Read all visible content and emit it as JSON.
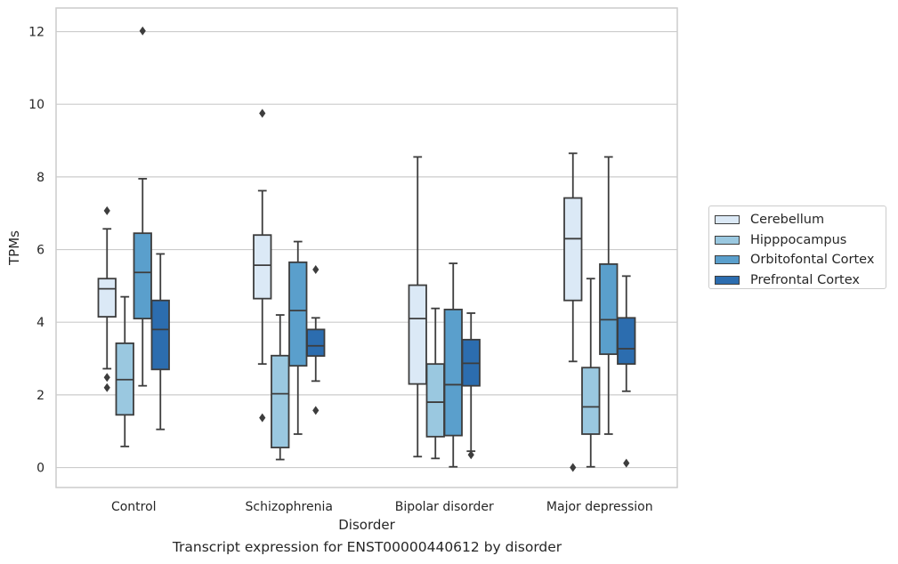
{
  "chart_data": {
    "type": "box",
    "caption": "Transcript expression for ENST00000440612 by disorder",
    "xlabel": "Disorder",
    "ylabel": "TPMs",
    "ylim": [
      -0.55,
      12.65
    ],
    "yticks": [
      0,
      2,
      4,
      6,
      8,
      10,
      12
    ],
    "grid": "horizontal",
    "legend_position": "right",
    "categories": [
      "Control",
      "Schizophrenia",
      "Bipolar disorder",
      "Major depression"
    ],
    "series": [
      {
        "name": "Cerebellum",
        "color": "#dbe9f6",
        "boxes": [
          {
            "whisker_low": 2.72,
            "q1": 4.15,
            "median": 4.92,
            "q3": 5.2,
            "whisker_high": 6.57,
            "outliers": [
              2.48,
              2.2,
              7.07
            ]
          },
          {
            "whisker_low": 2.85,
            "q1": 4.65,
            "median": 5.57,
            "q3": 6.4,
            "whisker_high": 7.62,
            "outliers": [
              1.37,
              9.75
            ]
          },
          {
            "whisker_low": 0.3,
            "q1": 2.3,
            "median": 4.1,
            "q3": 5.02,
            "whisker_high": 8.55,
            "outliers": []
          },
          {
            "whisker_low": 2.92,
            "q1": 4.6,
            "median": 6.3,
            "q3": 7.42,
            "whisker_high": 8.65,
            "outliers": [
              0.0
            ]
          }
        ]
      },
      {
        "name": "Hipppocampus",
        "color": "#9ac8e0",
        "boxes": [
          {
            "whisker_low": 0.58,
            "q1": 1.45,
            "median": 2.42,
            "q3": 3.42,
            "whisker_high": 4.7,
            "outliers": []
          },
          {
            "whisker_low": 0.22,
            "q1": 0.55,
            "median": 2.03,
            "q3": 3.08,
            "whisker_high": 4.2,
            "outliers": []
          },
          {
            "whisker_low": 0.25,
            "q1": 0.85,
            "median": 1.8,
            "q3": 2.85,
            "whisker_high": 4.38,
            "outliers": []
          },
          {
            "whisker_low": 0.02,
            "q1": 0.92,
            "median": 1.67,
            "q3": 2.75,
            "whisker_high": 5.2,
            "outliers": []
          }
        ]
      },
      {
        "name": "Orbitofontal Cortex",
        "color": "#5a9fcc",
        "boxes": [
          {
            "whisker_low": 2.25,
            "q1": 4.1,
            "median": 5.37,
            "q3": 6.45,
            "whisker_high": 7.95,
            "outliers": [
              12.02
            ]
          },
          {
            "whisker_low": 0.92,
            "q1": 2.8,
            "median": 4.32,
            "q3": 5.65,
            "whisker_high": 6.22,
            "outliers": []
          },
          {
            "whisker_low": 0.02,
            "q1": 0.88,
            "median": 2.28,
            "q3": 4.35,
            "whisker_high": 5.62,
            "outliers": []
          },
          {
            "whisker_low": 0.92,
            "q1": 3.12,
            "median": 4.07,
            "q3": 5.6,
            "whisker_high": 8.55,
            "outliers": []
          }
        ]
      },
      {
        "name": "Prefrontal Cortex",
        "color": "#2c6daf",
        "boxes": [
          {
            "whisker_low": 1.05,
            "q1": 2.7,
            "median": 3.8,
            "q3": 4.6,
            "whisker_high": 5.88,
            "outliers": []
          },
          {
            "whisker_low": 2.38,
            "q1": 3.07,
            "median": 3.35,
            "q3": 3.8,
            "whisker_high": 4.12,
            "outliers": [
              1.57,
              5.45
            ]
          },
          {
            "whisker_low": 0.45,
            "q1": 2.25,
            "median": 2.87,
            "q3": 3.52,
            "whisker_high": 4.25,
            "outliers": [
              0.35
            ]
          },
          {
            "whisker_low": 2.1,
            "q1": 2.85,
            "median": 3.27,
            "q3": 4.12,
            "whisker_high": 5.27,
            "outliers": [
              0.12
            ]
          }
        ]
      }
    ]
  }
}
